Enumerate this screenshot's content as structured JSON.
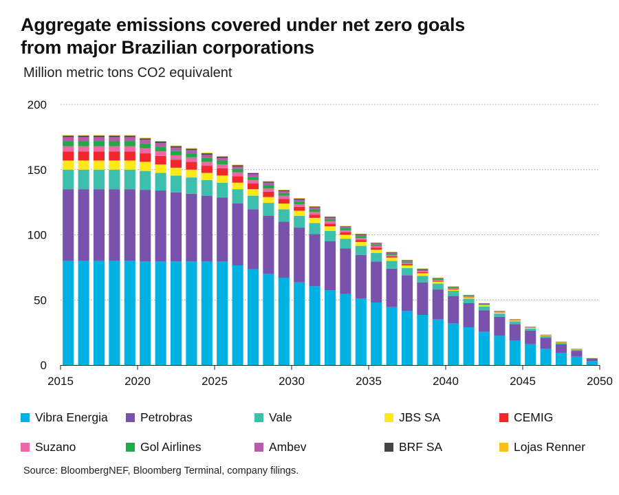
{
  "title_lines": [
    "Aggregate emissions covered under net zero goals",
    "from major Brazilian corporations"
  ],
  "subtitle": "Million metric tons CO2 equivalent",
  "source": "Source: BloombergNEF, Bloomberg Terminal, company filings.",
  "chart_data": {
    "type": "bar",
    "stacked": true,
    "title": "Aggregate emissions covered under net zero goals from major Brazilian corporations",
    "ylabel": "Million metric tons CO2 equivalent",
    "xlabel": "",
    "ylim": [
      0,
      200
    ],
    "yticks": [
      0,
      50,
      100,
      150,
      200
    ],
    "xlim": [
      2015,
      2050
    ],
    "xticks": [
      2015,
      2020,
      2025,
      2030,
      2035,
      2040,
      2045,
      2050
    ],
    "grid": "horizontal dashed",
    "legend_position": "bottom",
    "categories": [
      2015,
      2016,
      2017,
      2018,
      2019,
      2020,
      2021,
      2022,
      2023,
      2024,
      2025,
      2026,
      2027,
      2028,
      2029,
      2030,
      2031,
      2032,
      2033,
      2034,
      2035,
      2036,
      2037,
      2038,
      2039,
      2040,
      2041,
      2042,
      2043,
      2044,
      2045,
      2046,
      2047,
      2048,
      2049
    ],
    "series": [
      {
        "name": "Vibra Energia",
        "color": "#00b2e3",
        "values": [
          80,
          80,
          80,
          80,
          80,
          79.5,
          79.5,
          79.5,
          79.5,
          79.5,
          79.5,
          76.5,
          73.5,
          70,
          67,
          63.5,
          60.5,
          57.5,
          54.5,
          51,
          48,
          44.5,
          41.5,
          38.5,
          35,
          32,
          29,
          25.5,
          22.5,
          19,
          16,
          12.5,
          9.5,
          6.5,
          3
        ]
      },
      {
        "name": "Petrobras",
        "color": "#7852ad",
        "values": [
          55,
          55,
          55,
          55,
          55,
          55,
          54.5,
          53,
          52,
          50.5,
          49,
          47.5,
          46,
          44.5,
          43,
          42,
          40,
          37.5,
          35,
          33.5,
          31.5,
          29.5,
          27.5,
          25,
          23,
          21,
          18.5,
          16.5,
          14.5,
          12.5,
          10.5,
          8.5,
          6.5,
          4.5,
          2
        ]
      },
      {
        "name": "Vale",
        "color": "#3dbfad",
        "values": [
          15,
          15,
          15,
          15,
          15,
          14.5,
          13.5,
          13,
          12.5,
          12,
          11.5,
          11,
          10.5,
          10,
          9.5,
          9,
          8.5,
          8,
          7.5,
          7,
          6.5,
          6,
          5.5,
          5,
          4.5,
          4,
          3.5,
          3,
          2.5,
          2,
          1.5,
          1.2,
          1,
          0.8,
          0.4
        ]
      },
      {
        "name": "JBS SA",
        "color": "#ffe919",
        "values": [
          7,
          7,
          7,
          7,
          7,
          7,
          6.5,
          6,
          6,
          5.5,
          5.5,
          5,
          5,
          4.5,
          4.5,
          4,
          4,
          3.5,
          3,
          3,
          2.5,
          2.5,
          2,
          2,
          1.5,
          1,
          1,
          1,
          0.8,
          0.7,
          0.6,
          0.5,
          0.4,
          0.3,
          0.2
        ]
      },
      {
        "name": "CEMIG",
        "color": "#f0282d",
        "values": [
          7,
          7,
          7,
          7,
          7,
          6.5,
          6.5,
          6,
          6,
          5.5,
          5.5,
          5,
          4.5,
          4,
          3.5,
          3,
          2.5,
          2,
          2,
          1.5,
          1.5,
          1,
          1,
          0.8,
          0.6,
          0.5,
          0.4,
          0.3,
          0.2,
          0.2,
          0.1,
          0.1,
          0.1,
          0.1,
          0
        ]
      },
      {
        "name": "Suzano",
        "color": "#f067a6",
        "values": [
          4,
          4,
          4,
          4,
          4,
          4,
          3.5,
          3.5,
          3.5,
          3,
          3,
          3,
          2.5,
          2.5,
          2.5,
          2,
          2,
          2,
          1.5,
          1.5,
          1.5,
          1,
          1,
          1,
          0.8,
          0.6,
          0.5,
          0.4,
          0.3,
          0.3,
          0.2,
          0.2,
          0.1,
          0.1,
          0
        ]
      },
      {
        "name": "Gol Airlines",
        "color": "#1eaa48",
        "values": [
          4,
          4,
          4,
          4,
          4,
          3.5,
          3.5,
          3.5,
          3,
          3,
          3,
          2.5,
          2.5,
          2.5,
          2,
          2,
          2,
          1.5,
          1.5,
          1.5,
          1,
          1,
          1,
          0.8,
          0.6,
          0.5,
          0.4,
          0.3,
          0.3,
          0.2,
          0.2,
          0.1,
          0.1,
          0.1,
          0
        ]
      },
      {
        "name": "Ambev",
        "color": "#b45ea9",
        "values": [
          3,
          3,
          3,
          3,
          3,
          3,
          3,
          2.5,
          2.5,
          2.5,
          2,
          2,
          2,
          2,
          1.5,
          1.5,
          1.5,
          1.2,
          1,
          1,
          0.8,
          0.8,
          0.6,
          0.5,
          0.5,
          0.4,
          0.3,
          0.3,
          0.2,
          0.2,
          0.2,
          0.1,
          0.1,
          0.1,
          0
        ]
      },
      {
        "name": "BRF SA",
        "color": "#444444",
        "values": [
          1,
          1,
          1,
          1,
          1,
          1,
          1,
          1,
          1,
          1,
          1,
          0.8,
          0.8,
          0.8,
          0.7,
          0.7,
          0.6,
          0.6,
          0.5,
          0.5,
          0.5,
          0.4,
          0.4,
          0.3,
          0.3,
          0.3,
          0.2,
          0.2,
          0.2,
          0.1,
          0.1,
          0.1,
          0.1,
          0,
          0
        ]
      },
      {
        "name": "Lojas Renner",
        "color": "#f5bf1f",
        "values": [
          0.5,
          0.5,
          0.5,
          0.5,
          0.5,
          0.5,
          0.5,
          0.5,
          0.5,
          0.5,
          0.5,
          0.5,
          0.4,
          0.4,
          0.4,
          0.4,
          0.3,
          0.3,
          0.3,
          0.3,
          0.2,
          0.2,
          0.2,
          0.2,
          0.2,
          0.1,
          0.1,
          0.1,
          0.1,
          0.1,
          0.1,
          0,
          0,
          0,
          0
        ]
      }
    ]
  }
}
